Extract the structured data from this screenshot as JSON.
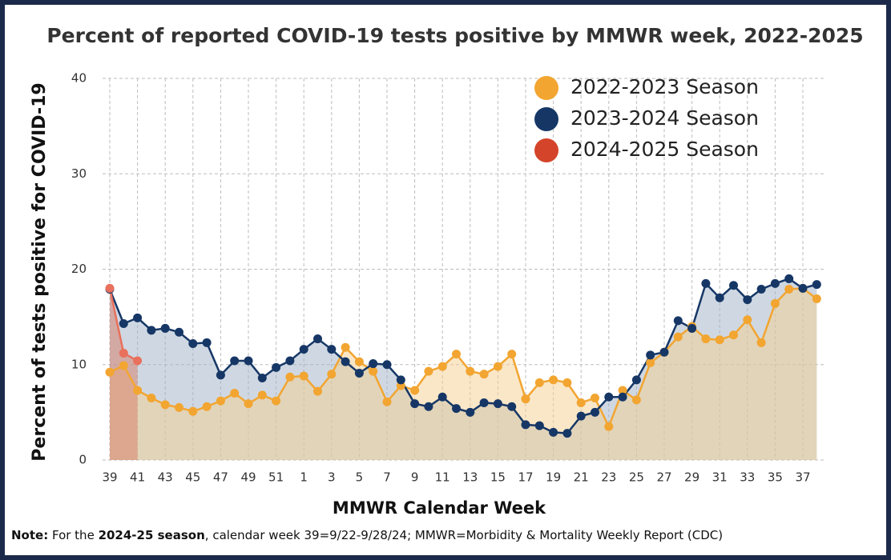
{
  "chart_data": {
    "type": "line",
    "title": "Percent of reported COVID-19 tests positive by MMWR week, 2022-2025",
    "x_label": "MMWR Calendar Week",
    "y_label": "Percent of tests positive for COVID-19",
    "categories": [
      "39",
      null,
      "41",
      null,
      "43",
      null,
      "45",
      null,
      "47",
      null,
      "49",
      null,
      "51",
      null,
      "1",
      null,
      "3",
      null,
      "5",
      null,
      "7",
      null,
      "9",
      null,
      "11",
      null,
      "13",
      null,
      "15",
      null,
      "17",
      null,
      "19",
      null,
      "21",
      null,
      "23",
      null,
      "25",
      null,
      "27",
      null,
      "29",
      null,
      "31",
      null,
      "33",
      null,
      "35",
      null,
      "37",
      null
    ],
    "series": [
      {
        "name": "2022-2023 Season",
        "color": "#f2a531",
        "area_color": "#f5cf8f",
        "values": [
          9.2,
          9.9,
          7.3,
          6.5,
          5.8,
          5.5,
          5.1,
          5.6,
          6.2,
          7.0,
          5.9,
          6.8,
          6.2,
          8.7,
          8.8,
          7.2,
          9.0,
          11.8,
          10.3,
          9.3,
          6.1,
          7.8,
          7.3,
          9.3,
          9.8,
          11.1,
          9.3,
          9.0,
          9.8,
          11.1,
          6.4,
          8.1,
          8.4,
          8.1,
          6.0,
          6.5,
          3.5,
          7.3,
          6.3,
          10.2,
          11.3,
          12.9,
          14.0,
          12.7,
          12.6,
          13.1,
          14.7,
          12.3,
          16.4,
          17.9,
          18.0,
          16.9
        ]
      },
      {
        "name": "2023-2024 Season",
        "color": "#163766",
        "area_color": "#9fb2c6",
        "values": [
          17.9,
          14.3,
          14.9,
          13.6,
          13.8,
          13.4,
          12.2,
          12.3,
          8.9,
          10.4,
          10.4,
          8.6,
          9.7,
          10.4,
          11.6,
          12.7,
          11.6,
          10.3,
          9.1,
          10.1,
          10.0,
          8.4,
          5.9,
          5.6,
          6.6,
          5.4,
          5.0,
          6.0,
          5.9,
          5.6,
          3.7,
          3.6,
          2.9,
          2.8,
          4.6,
          5.0,
          6.6,
          6.6,
          8.4,
          11.0,
          11.3,
          14.6,
          13.8,
          18.5,
          17.0,
          18.3,
          16.8,
          17.9,
          18.5,
          19.0,
          18.0,
          18.4
        ]
      },
      {
        "name": "2024-2025 Season",
        "color": "#d4442a",
        "area_color": "#d77a66",
        "values": [
          18.0,
          11.2,
          10.4,
          null,
          null,
          null,
          null,
          null,
          null,
          null,
          null,
          null,
          null,
          null,
          null,
          null,
          null,
          null,
          null,
          null,
          null,
          null,
          null,
          null,
          null,
          null,
          null,
          null,
          null,
          null,
          null,
          null,
          null,
          null,
          null,
          null,
          null,
          null,
          null,
          null,
          null,
          null,
          null,
          null,
          null,
          null,
          null,
          null,
          null,
          null,
          null,
          null
        ]
      }
    ],
    "ylim": [
      0,
      40
    ],
    "yticks": [
      0,
      10,
      20,
      30,
      40
    ],
    "grid": true,
    "legend": "top-right",
    "note": [
      "Note:",
      " For the ",
      "2024-25 season",
      ", calendar week 39=9/22-9/28/24; MMWR=Morbidity & Mortality Weekly Report (CDC)"
    ]
  }
}
